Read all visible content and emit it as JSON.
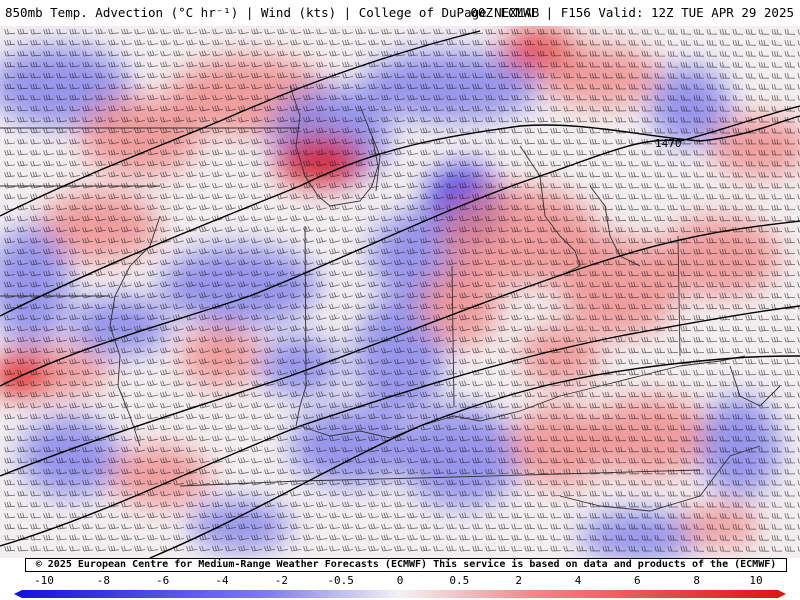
{
  "header": {
    "title_left": "850mb Temp. Advection (°C hr⁻¹) | Wind (kts) | College of DuPage NEXLAB",
    "title_right": "00Z ECMWF | F156 Valid: 12Z TUE APR 29 2025"
  },
  "map": {
    "contour_label": "1470"
  },
  "copyright": "© 2025 European Centre for Medium-Range Weather Forecasts (ECMWF)  This service is based on data and products of the (ECMWF)",
  "scale": {
    "ticks": [
      "-10",
      "-8",
      "-6",
      "-4",
      "-2",
      "-0.5",
      "0",
      "0.5",
      "2",
      "4",
      "6",
      "8",
      "10"
    ],
    "colors": {
      "strong_cold": "#1010e0",
      "cold": "#7f7fea",
      "neutral": "#f4f2f4",
      "warm": "#ee8a8a",
      "strong_warm": "#e01010"
    }
  }
}
